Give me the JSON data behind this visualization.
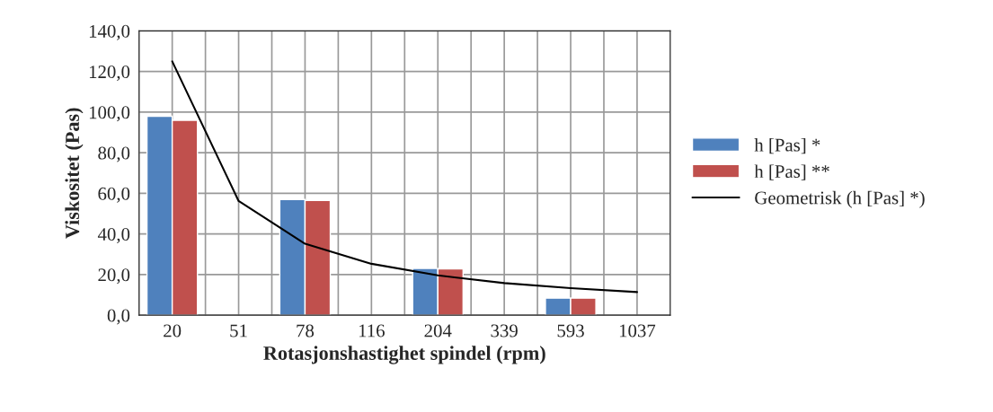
{
  "chart_data": {
    "type": "bar",
    "xlabel": "Rotasjonshastighet spindel (rpm)",
    "ylabel": "Viskositet (Pas)",
    "categories": [
      "20",
      "51",
      "78",
      "116",
      "204",
      "339",
      "593",
      "1037"
    ],
    "series": [
      {
        "name": "h [Pas] *",
        "color": "#4f81bd",
        "values": [
          98,
          null,
          57,
          null,
          23,
          null,
          8.4,
          null
        ]
      },
      {
        "name": "h [Pas] **",
        "color": "#c0504d",
        "values": [
          96,
          null,
          56.5,
          null,
          22.8,
          null,
          8.4,
          null
        ]
      },
      {
        "name": "Geometrisk (h [Pas] *)",
        "type": "line",
        "color": "#000000",
        "values": [
          125,
          56.2,
          35.2,
          25.3,
          19.6,
          15.8,
          13.3,
          11.4
        ]
      }
    ],
    "ylim": [
      0,
      140
    ],
    "yticks": [
      {
        "value": 0,
        "label": "0,0"
      },
      {
        "value": 20,
        "label": "20,0"
      },
      {
        "value": 40,
        "label": "40,0"
      },
      {
        "value": 60,
        "label": "60,0"
      },
      {
        "value": 80,
        "label": "80,0"
      },
      {
        "value": 100,
        "label": "100,0"
      },
      {
        "value": 120,
        "label": "120,0"
      },
      {
        "value": 140,
        "label": "140,0"
      }
    ],
    "grid": true,
    "legend": "right",
    "marker": "none",
    "line_style": "solid"
  }
}
